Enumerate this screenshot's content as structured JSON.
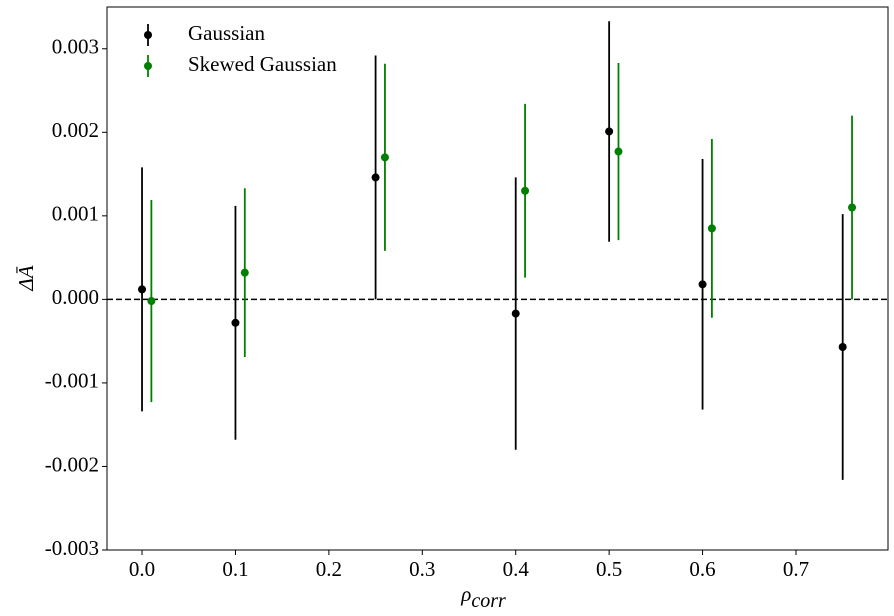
{
  "chart_data": {
    "type": "errorbar",
    "xlabel": "ρ",
    "xlabel_subscript": "corr",
    "ylabel": "ΔĀ",
    "xlim": [
      -0.0375,
      0.7985
    ],
    "ylim": [
      -0.003,
      0.0035
    ],
    "xticks": [
      {
        "value": 0,
        "label": "0.0"
      },
      0.1,
      0.2,
      0.3,
      0.4,
      0.5,
      0.6,
      0.7
    ],
    "yticks": [
      -0.003,
      -0.002,
      -0.001,
      {
        "value": 0,
        "label": "0.000"
      },
      0.001,
      0.002,
      0.003
    ],
    "hline": 0,
    "legend": "upper left",
    "series": [
      {
        "name": "Gaussian",
        "color": "#000000",
        "x": [
          0.0,
          0.1,
          0.25,
          0.4,
          0.5,
          0.6,
          0.75
        ],
        "values": [
          0.00012,
          -0.00028,
          0.00146,
          -0.00017,
          0.00201,
          0.00018,
          -0.00057
        ],
        "errors": [
          0.00146,
          0.0014,
          0.00146,
          0.00163,
          0.00132,
          0.0015,
          0.00159
        ]
      },
      {
        "name": "Skewed Gaussian",
        "color": "#008000",
        "x": [
          0.01,
          0.11,
          0.26,
          0.41,
          0.51,
          0.61,
          0.76
        ],
        "values": [
          -2e-05,
          0.00032,
          0.0017,
          0.0013,
          0.00177,
          0.00085,
          0.0011
        ],
        "errors": [
          0.00121,
          0.00101,
          0.00112,
          0.00104,
          0.00106,
          0.00107,
          0.0011
        ]
      }
    ]
  }
}
